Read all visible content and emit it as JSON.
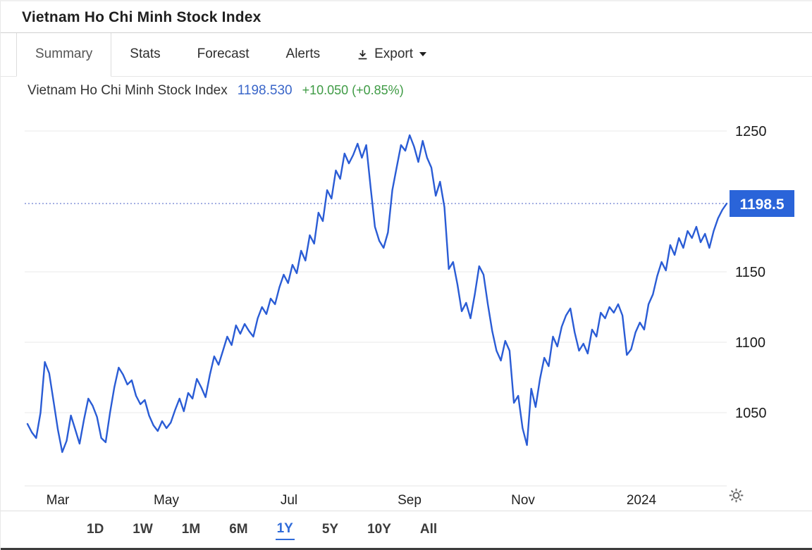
{
  "page": {
    "title": "Vietnam Ho Chi Minh Stock Index"
  },
  "tabs": {
    "items": [
      {
        "label": "Summary",
        "active": true
      },
      {
        "label": "Stats",
        "active": false
      },
      {
        "label": "Forecast",
        "active": false
      },
      {
        "label": "Alerts",
        "active": false
      },
      {
        "label": "Export",
        "active": false
      }
    ]
  },
  "quote": {
    "name": "Vietnam Ho Chi Minh Stock Index",
    "last": "1198.530",
    "change": "+10.050 (+0.85%)"
  },
  "ranges": {
    "items": [
      "1D",
      "1W",
      "1M",
      "6M",
      "1Y",
      "5Y",
      "10Y",
      "All"
    ],
    "active": "1Y"
  },
  "colors": {
    "line": "#2a5cd5",
    "badge": "#2a64d9",
    "dotted": "#4a5fc4",
    "price_text": "#3a66c9",
    "change_text": "#3f9b45",
    "active_range": "#2f6bd9",
    "grid": "#e9e9e9",
    "axis_text": "#1a1a1a"
  },
  "chart_data": {
    "type": "line",
    "title": "Vietnam Ho Chi Minh Stock Index",
    "ylim": [
      998,
      1268
    ],
    "y_ticks": [
      1250,
      1150,
      1100,
      1050
    ],
    "x_ticks": [
      {
        "label": "Mar",
        "f": 0.047
      },
      {
        "label": "May",
        "f": 0.202
      },
      {
        "label": "Jul",
        "f": 0.377
      },
      {
        "label": "Sep",
        "f": 0.548
      },
      {
        "label": "Nov",
        "f": 0.71
      },
      {
        "label": "2024",
        "f": 0.879
      }
    ],
    "last_price": 1198.5,
    "last_label": "1198.5",
    "grid": "horizontal",
    "legend": "none",
    "series": [
      {
        "name": "Vietnam Ho Chi Minh Stock Index",
        "values": [
          1042,
          1036,
          1032,
          1050,
          1086,
          1078,
          1058,
          1038,
          1022,
          1030,
          1048,
          1038,
          1028,
          1045,
          1060,
          1055,
          1047,
          1032,
          1029,
          1050,
          1068,
          1082,
          1077,
          1070,
          1073,
          1062,
          1056,
          1059,
          1048,
          1041,
          1037,
          1044,
          1039,
          1043,
          1052,
          1060,
          1051,
          1064,
          1060,
          1074,
          1068,
          1061,
          1077,
          1090,
          1084,
          1094,
          1104,
          1098,
          1112,
          1106,
          1113,
          1108,
          1104,
          1117,
          1125,
          1120,
          1131,
          1127,
          1139,
          1148,
          1142,
          1155,
          1149,
          1165,
          1158,
          1176,
          1170,
          1192,
          1186,
          1208,
          1202,
          1222,
          1216,
          1234,
          1227,
          1233,
          1241,
          1231,
          1240,
          1210,
          1182,
          1172,
          1167,
          1178,
          1208,
          1224,
          1240,
          1236,
          1247,
          1239,
          1228,
          1243,
          1231,
          1224,
          1204,
          1214,
          1196,
          1152,
          1157,
          1141,
          1122,
          1128,
          1117,
          1134,
          1154,
          1148,
          1127,
          1108,
          1094,
          1087,
          1101,
          1094,
          1057,
          1062,
          1039,
          1027,
          1067,
          1054,
          1074,
          1089,
          1083,
          1104,
          1097,
          1111,
          1119,
          1124,
          1107,
          1094,
          1099,
          1092,
          1109,
          1104,
          1121,
          1117,
          1125,
          1121,
          1127,
          1119,
          1091,
          1095,
          1107,
          1114,
          1109,
          1127,
          1134,
          1147,
          1157,
          1151,
          1169,
          1162,
          1174,
          1167,
          1179,
          1174,
          1182,
          1171,
          1177,
          1167,
          1179,
          1188,
          1194,
          1198.5
        ]
      }
    ]
  }
}
